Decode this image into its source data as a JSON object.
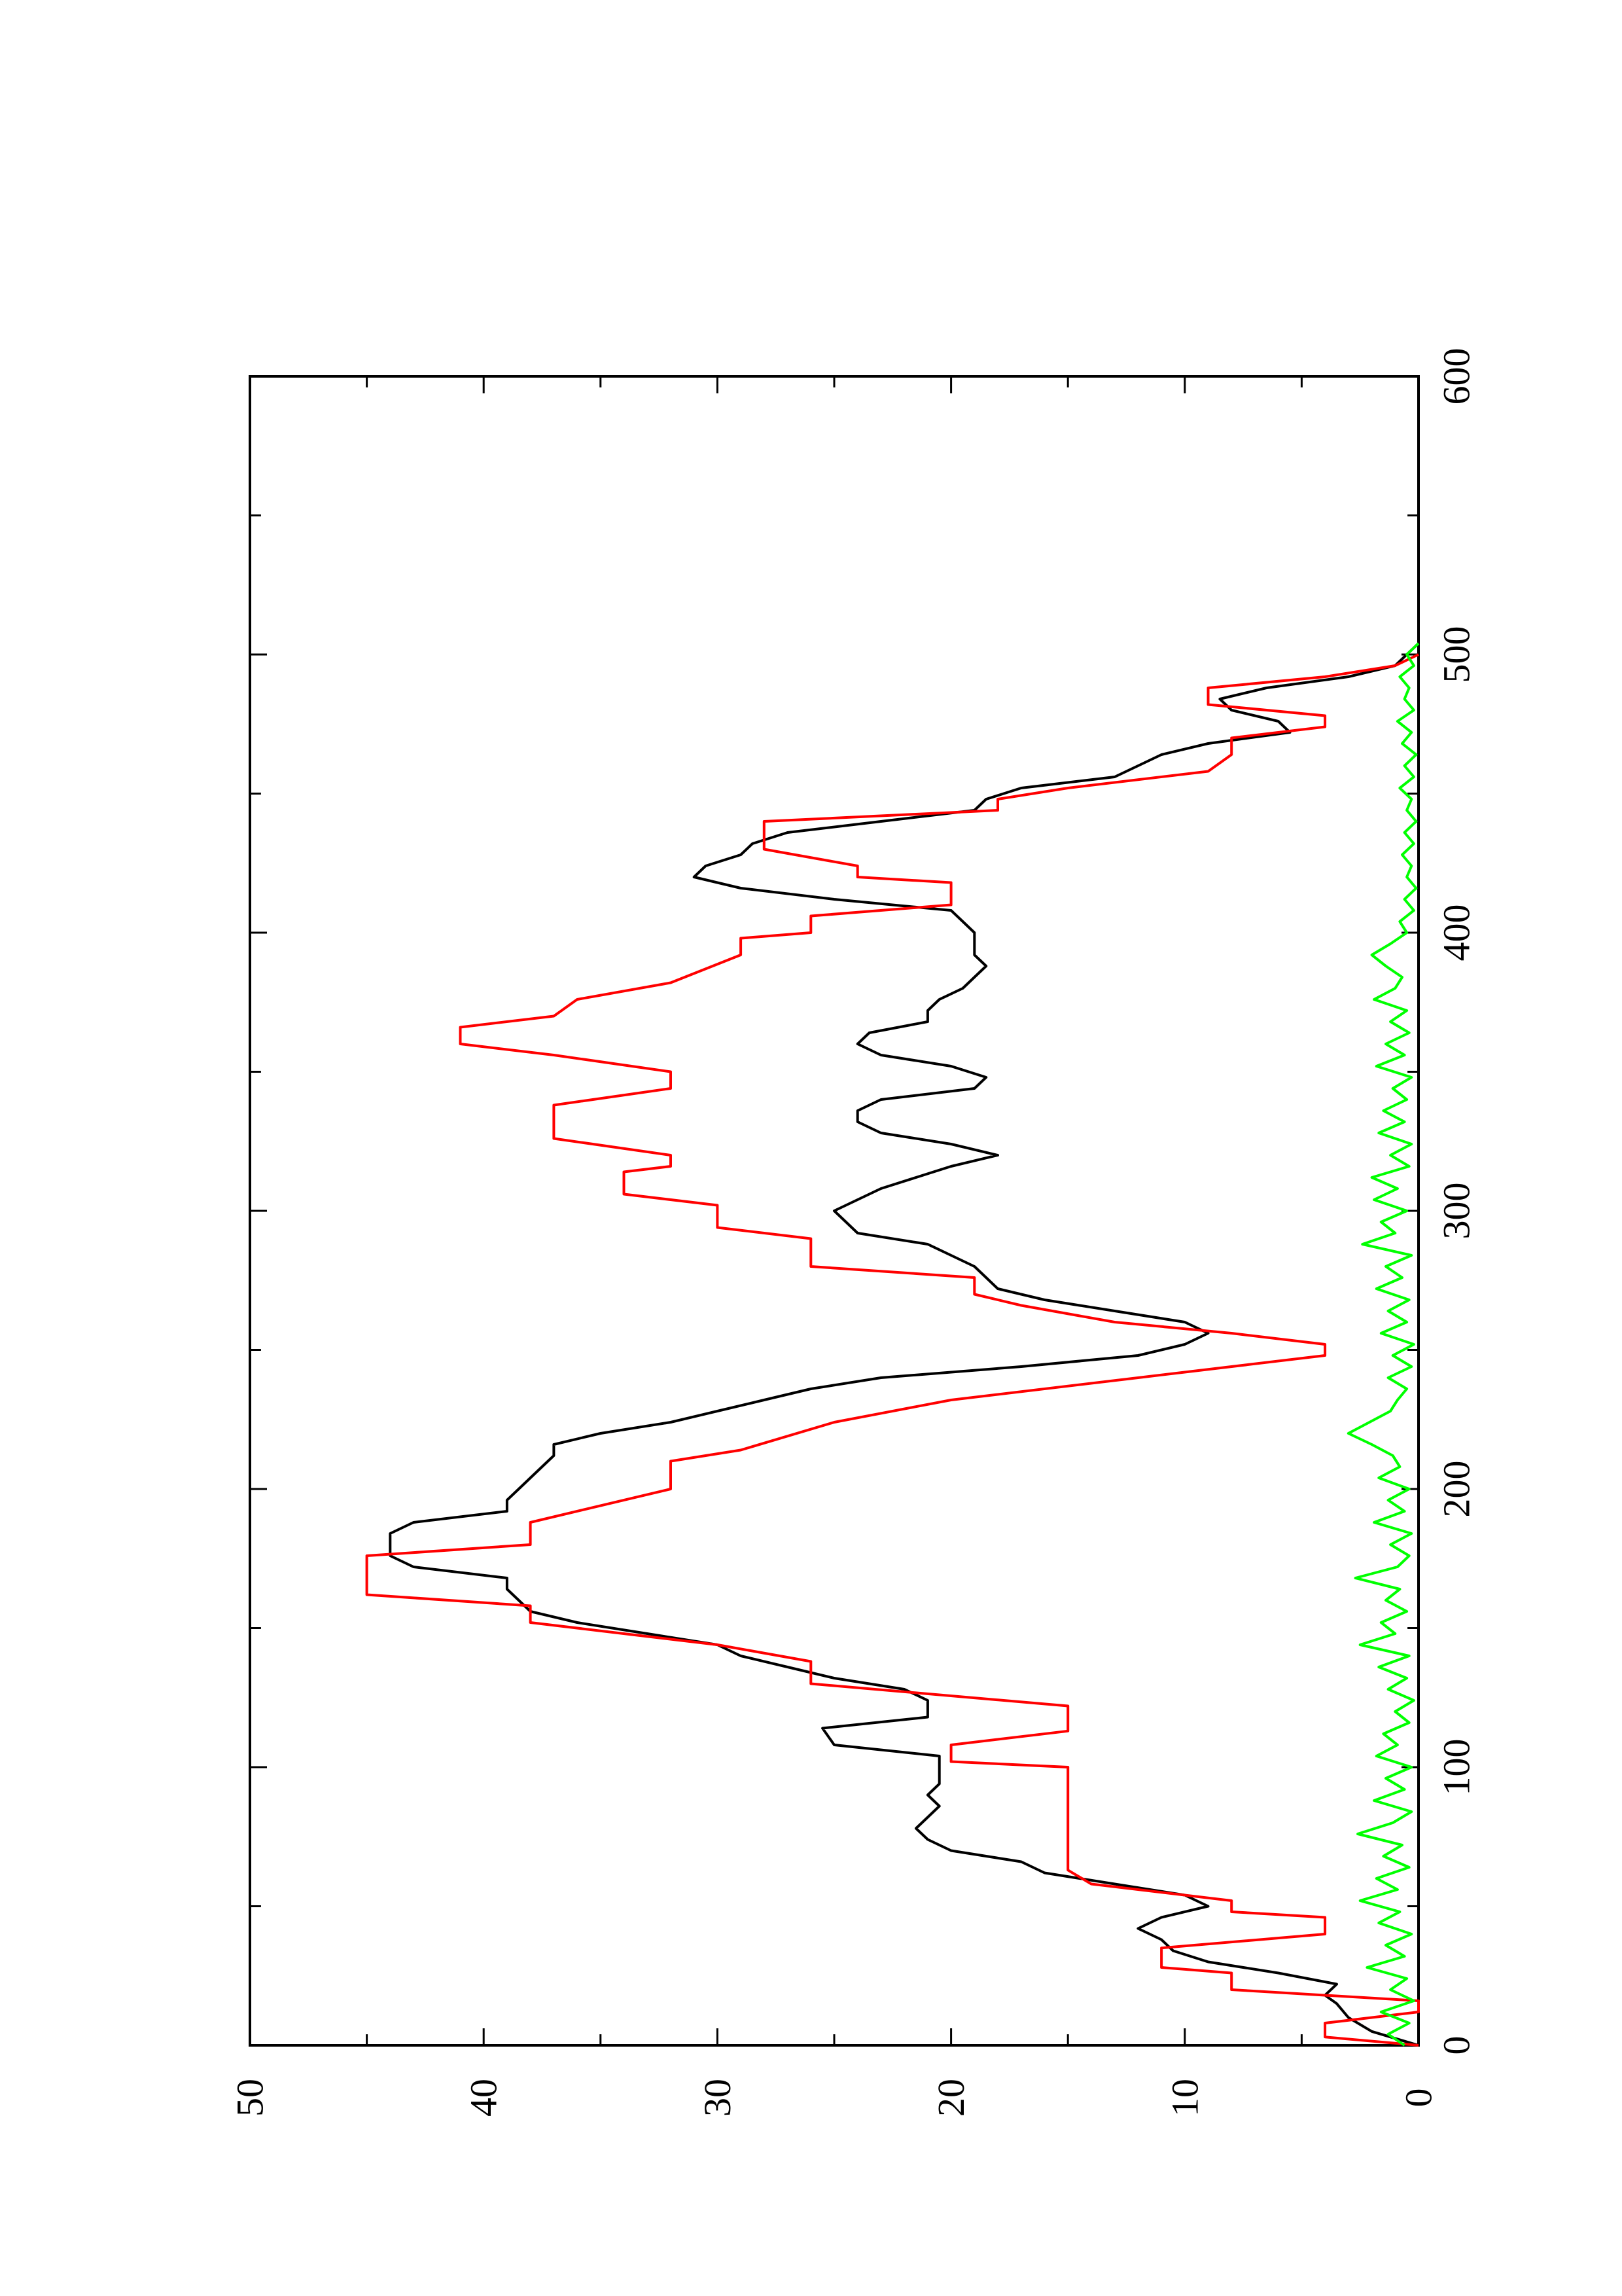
{
  "chart_data": {
    "type": "line",
    "orientation": "rotated 90 degrees counter-clockwise (y axis runs along bottom of page)",
    "title": "",
    "xlabel": "",
    "ylabel": "",
    "xlim": [
      0,
      600
    ],
    "ylim": [
      0,
      50
    ],
    "x_ticks": [
      "0",
      "100",
      "200",
      "300",
      "400",
      "500",
      "600"
    ],
    "y_ticks": [
      "0",
      "10",
      "20",
      "30",
      "40",
      "50"
    ],
    "grid": false,
    "legend": "none",
    "series": [
      {
        "color": "#000000",
        "points": [
          [
            0,
            0
          ],
          [
            5,
            2
          ],
          [
            10,
            3
          ],
          [
            15,
            3.5
          ],
          [
            18,
            4
          ],
          [
            22,
            3.5
          ],
          [
            26,
            6
          ],
          [
            30,
            9
          ],
          [
            34,
            10.5
          ],
          [
            38,
            11
          ],
          [
            42,
            12
          ],
          [
            46,
            11
          ],
          [
            50,
            9
          ],
          [
            54,
            10
          ],
          [
            58,
            13
          ],
          [
            62,
            16
          ],
          [
            66,
            17
          ],
          [
            70,
            20
          ],
          [
            74,
            21
          ],
          [
            78,
            21.5
          ],
          [
            82,
            21
          ],
          [
            86,
            20.5
          ],
          [
            90,
            21
          ],
          [
            94,
            20.5
          ],
          [
            100,
            20.5
          ],
          [
            104,
            20.5
          ],
          [
            108,
            25
          ],
          [
            114,
            25.5
          ],
          [
            118,
            21
          ],
          [
            124,
            21
          ],
          [
            128,
            22
          ],
          [
            132,
            25
          ],
          [
            136,
            27
          ],
          [
            140,
            29
          ],
          [
            144,
            30
          ],
          [
            148,
            33
          ],
          [
            152,
            36
          ],
          [
            156,
            38
          ],
          [
            160,
            38.5
          ],
          [
            164,
            39
          ],
          [
            168,
            39
          ],
          [
            172,
            43
          ],
          [
            176,
            44
          ],
          [
            180,
            44
          ],
          [
            184,
            44
          ],
          [
            188,
            43
          ],
          [
            192,
            39
          ],
          [
            196,
            39
          ],
          [
            200,
            38.5
          ],
          [
            204,
            38
          ],
          [
            208,
            37.5
          ],
          [
            212,
            37
          ],
          [
            216,
            37
          ],
          [
            220,
            35
          ],
          [
            224,
            32
          ],
          [
            228,
            30
          ],
          [
            232,
            28
          ],
          [
            236,
            26
          ],
          [
            240,
            23
          ],
          [
            244,
            17
          ],
          [
            248,
            12
          ],
          [
            252,
            10
          ],
          [
            256,
            9
          ],
          [
            260,
            10
          ],
          [
            264,
            13
          ],
          [
            268,
            16
          ],
          [
            272,
            18
          ],
          [
            276,
            18.5
          ],
          [
            280,
            19
          ],
          [
            284,
            20
          ],
          [
            288,
            21
          ],
          [
            292,
            24
          ],
          [
            296,
            24.5
          ],
          [
            300,
            25
          ],
          [
            304,
            24
          ],
          [
            308,
            23
          ],
          [
            312,
            21.5
          ],
          [
            316,
            20
          ],
          [
            320,
            18
          ],
          [
            324,
            20
          ],
          [
            328,
            23
          ],
          [
            332,
            24
          ],
          [
            336,
            24
          ],
          [
            340,
            23
          ],
          [
            344,
            19
          ],
          [
            348,
            18.5
          ],
          [
            352,
            20
          ],
          [
            356,
            23
          ],
          [
            360,
            24
          ],
          [
            364,
            23.5
          ],
          [
            368,
            21
          ],
          [
            372,
            21
          ],
          [
            376,
            20.5
          ],
          [
            380,
            19.5
          ],
          [
            384,
            19
          ],
          [
            388,
            18.5
          ],
          [
            392,
            19
          ],
          [
            396,
            19
          ],
          [
            400,
            19
          ],
          [
            404,
            19.5
          ],
          [
            408,
            20
          ],
          [
            412,
            25
          ],
          [
            416,
            29
          ],
          [
            420,
            31
          ],
          [
            424,
            30.5
          ],
          [
            428,
            29
          ],
          [
            432,
            28.5
          ],
          [
            436,
            27
          ],
          [
            440,
            23
          ],
          [
            444,
            19
          ],
          [
            448,
            18.5
          ],
          [
            452,
            17
          ],
          [
            456,
            13
          ],
          [
            460,
            12
          ],
          [
            464,
            11
          ],
          [
            468,
            9
          ],
          [
            472,
            5.5
          ],
          [
            476,
            6
          ],
          [
            480,
            8
          ],
          [
            484,
            8.5
          ],
          [
            488,
            6.5
          ],
          [
            492,
            3
          ],
          [
            496,
            1
          ],
          [
            500,
            0.5
          ],
          [
            504,
            0
          ]
        ]
      },
      {
        "color": "#ff0000",
        "points": [
          [
            0,
            0
          ],
          [
            3,
            4
          ],
          [
            8,
            4
          ],
          [
            12,
            0
          ],
          [
            16,
            0
          ],
          [
            20,
            8
          ],
          [
            26,
            8
          ],
          [
            28,
            11
          ],
          [
            35,
            11
          ],
          [
            40,
            4
          ],
          [
            46,
            4
          ],
          [
            48,
            8
          ],
          [
            52,
            8
          ],
          [
            58,
            14
          ],
          [
            63,
            15
          ],
          [
            88,
            15
          ],
          [
            100,
            15
          ],
          [
            102,
            20
          ],
          [
            108,
            20
          ],
          [
            113,
            15
          ],
          [
            122,
            15
          ],
          [
            130,
            26
          ],
          [
            138,
            26
          ],
          [
            144,
            30
          ],
          [
            152,
            38
          ],
          [
            158,
            38
          ],
          [
            162,
            45
          ],
          [
            176,
            45
          ],
          [
            180,
            38
          ],
          [
            188,
            38
          ],
          [
            200,
            32
          ],
          [
            210,
            32
          ],
          [
            214,
            29
          ],
          [
            224,
            25
          ],
          [
            232,
            20
          ],
          [
            240,
            12
          ],
          [
            248,
            4
          ],
          [
            252,
            4
          ],
          [
            256,
            8
          ],
          [
            260,
            13
          ],
          [
            266,
            17
          ],
          [
            270,
            19
          ],
          [
            276,
            19
          ],
          [
            280,
            26
          ],
          [
            290,
            26
          ],
          [
            294,
            30
          ],
          [
            302,
            30
          ],
          [
            306,
            34
          ],
          [
            314,
            34
          ],
          [
            316,
            32
          ],
          [
            320,
            32
          ],
          [
            326,
            37
          ],
          [
            338,
            37
          ],
          [
            344,
            32
          ],
          [
            350,
            32
          ],
          [
            356,
            37
          ],
          [
            360,
            41
          ],
          [
            366,
            41
          ],
          [
            370,
            37
          ],
          [
            376,
            36
          ],
          [
            382,
            32
          ],
          [
            392,
            29
          ],
          [
            398,
            29
          ],
          [
            400,
            26
          ],
          [
            406,
            26
          ],
          [
            410,
            20
          ],
          [
            418,
            20
          ],
          [
            420,
            24
          ],
          [
            424,
            24
          ],
          [
            430,
            28
          ],
          [
            440,
            28
          ],
          [
            444,
            18
          ],
          [
            448,
            18
          ],
          [
            452,
            15
          ],
          [
            458,
            9
          ],
          [
            464,
            8
          ],
          [
            470,
            8
          ],
          [
            474,
            4
          ],
          [
            478,
            4
          ],
          [
            482,
            9
          ],
          [
            488,
            9
          ],
          [
            492,
            4
          ],
          [
            496,
            1
          ],
          [
            500,
            0
          ]
        ]
      },
      {
        "color": "#00ff00",
        "points": [
          [
            0,
            0.6
          ],
          [
            4,
            1.3
          ],
          [
            8,
            0.4
          ],
          [
            12,
            1.6
          ],
          [
            16,
            0.2
          ],
          [
            20,
            1.2
          ],
          [
            24,
            0.5
          ],
          [
            28,
            2.2
          ],
          [
            32,
            0.6
          ],
          [
            36,
            1.4
          ],
          [
            40,
            0.3
          ],
          [
            44,
            1.7
          ],
          [
            48,
            0.8
          ],
          [
            52,
            2.5
          ],
          [
            56,
            0.9
          ],
          [
            60,
            1.8
          ],
          [
            64,
            0.4
          ],
          [
            68,
            1.5
          ],
          [
            72,
            0.7
          ],
          [
            76,
            2.6
          ],
          [
            80,
            1.1
          ],
          [
            84,
            0.3
          ],
          [
            88,
            1.9
          ],
          [
            92,
            0.6
          ],
          [
            96,
            1.4
          ],
          [
            100,
            0.3
          ],
          [
            104,
            1.8
          ],
          [
            108,
            0.9
          ],
          [
            112,
            1.5
          ],
          [
            116,
            0.4
          ],
          [
            120,
            1.0
          ],
          [
            124,
            0.2
          ],
          [
            128,
            1.3
          ],
          [
            132,
            0.5
          ],
          [
            136,
            1.7
          ],
          [
            140,
            0.4
          ],
          [
            144,
            2.5
          ],
          [
            148,
            1.0
          ],
          [
            152,
            1.6
          ],
          [
            156,
            0.5
          ],
          [
            160,
            1.4
          ],
          [
            164,
            0.8
          ],
          [
            168,
            2.7
          ],
          [
            172,
            0.9
          ],
          [
            176,
            0.4
          ],
          [
            180,
            1.2
          ],
          [
            184,
            0.3
          ],
          [
            188,
            1.9
          ],
          [
            192,
            0.6
          ],
          [
            196,
            1.3
          ],
          [
            200,
            0.4
          ],
          [
            204,
            1.7
          ],
          [
            208,
            0.8
          ],
          [
            212,
            1.1
          ],
          [
            216,
            2.0
          ],
          [
            220,
            3.0
          ],
          [
            224,
            2.1
          ],
          [
            228,
            1.2
          ],
          [
            232,
            0.9
          ],
          [
            236,
            0.5
          ],
          [
            240,
            1.3
          ],
          [
            244,
            0.3
          ],
          [
            248,
            1.1
          ],
          [
            252,
            0.2
          ],
          [
            256,
            1.6
          ],
          [
            260,
            0.5
          ],
          [
            264,
            1.3
          ],
          [
            268,
            0.4
          ],
          [
            272,
            1.8
          ],
          [
            276,
            0.7
          ],
          [
            280,
            1.4
          ],
          [
            284,
            0.3
          ],
          [
            288,
            2.4
          ],
          [
            292,
            1.0
          ],
          [
            296,
            1.6
          ],
          [
            300,
            0.5
          ],
          [
            304,
            1.9
          ],
          [
            308,
            0.9
          ],
          [
            312,
            2.0
          ],
          [
            316,
            0.4
          ],
          [
            320,
            1.2
          ],
          [
            324,
            0.3
          ],
          [
            328,
            1.7
          ],
          [
            332,
            0.6
          ],
          [
            336,
            1.5
          ],
          [
            340,
            0.5
          ],
          [
            344,
            1.1
          ],
          [
            348,
            0.3
          ],
          [
            352,
            1.8
          ],
          [
            356,
            0.6
          ],
          [
            360,
            1.4
          ],
          [
            364,
            0.4
          ],
          [
            368,
            1.2
          ],
          [
            372,
            0.5
          ],
          [
            376,
            1.9
          ],
          [
            380,
            1.0
          ],
          [
            384,
            0.7
          ],
          [
            388,
            1.4
          ],
          [
            392,
            2.0
          ],
          [
            396,
            1.2
          ],
          [
            400,
            0.5
          ],
          [
            404,
            0.8
          ],
          [
            408,
            0.2
          ],
          [
            412,
            0.6
          ],
          [
            416,
            0.1
          ],
          [
            420,
            0.5
          ],
          [
            424,
            0.3
          ],
          [
            428,
            0.7
          ],
          [
            432,
            0.2
          ],
          [
            436,
            0.6
          ],
          [
            440,
            0.1
          ],
          [
            444,
            0.5
          ],
          [
            448,
            0.3
          ],
          [
            452,
            0.8
          ],
          [
            456,
            0.2
          ],
          [
            460,
            0.6
          ],
          [
            464,
            0.1
          ],
          [
            468,
            0.7
          ],
          [
            472,
            0.3
          ],
          [
            476,
            0.9
          ],
          [
            480,
            0.2
          ],
          [
            484,
            0.6
          ],
          [
            488,
            0.4
          ],
          [
            492,
            0.8
          ],
          [
            496,
            0.2
          ],
          [
            500,
            0.5
          ],
          [
            504,
            0
          ]
        ]
      }
    ]
  }
}
